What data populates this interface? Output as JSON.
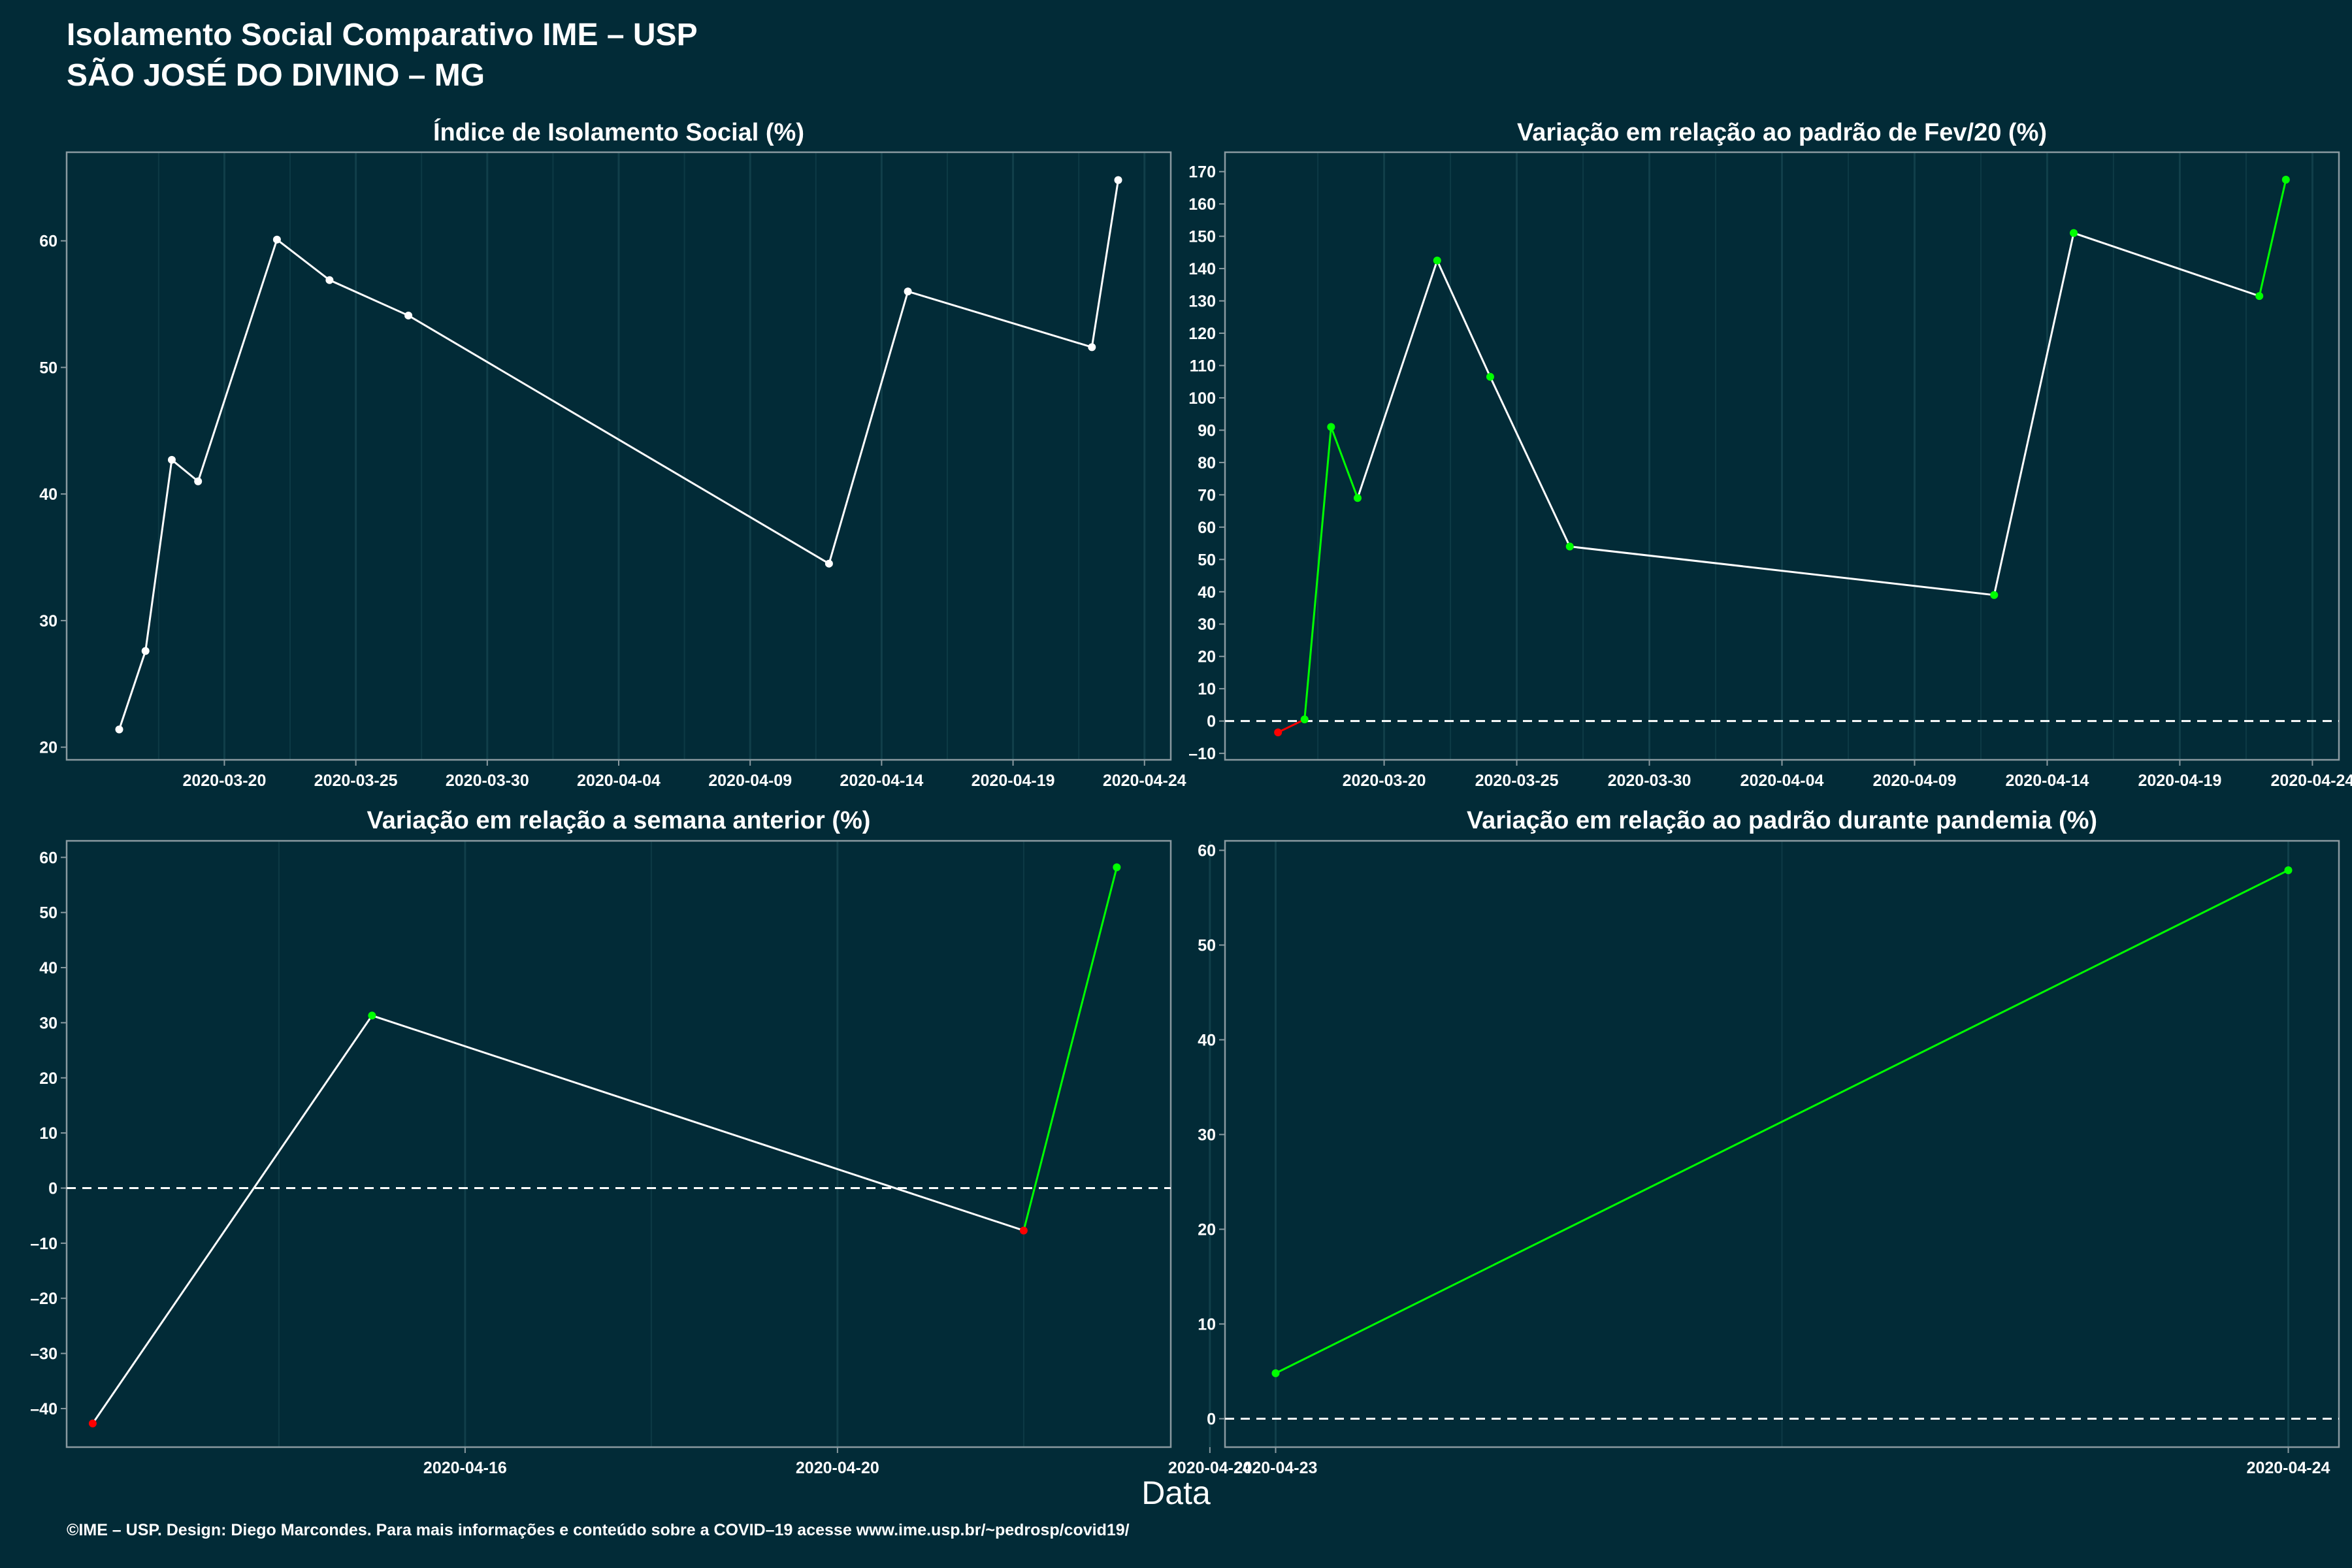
{
  "title": "Isolamento Social Comparativo IME – USP",
  "subtitle": "SÃO JOSÉ DO DIVINO – MG",
  "xlabel": "Data",
  "footer": "©IME – USP. Design: Diego Marcondes. Para mais informações e conteúdo sobre a COVID–19 acesse www.ime.usp.br/~pedrosp/covid19/",
  "colors": {
    "background": "#022b37",
    "neutral": "#ffffff",
    "positive": "#00ff00",
    "negative": "#ff0000",
    "axis": "#8a9aa0"
  },
  "chart_data": [
    {
      "type": "line",
      "title": "Índice de Isolamento Social (%)",
      "x": [
        "2020-03-16",
        "2020-03-17",
        "2020-03-18",
        "2020-03-19",
        "2020-03-22",
        "2020-03-24",
        "2020-03-27",
        "2020-04-12",
        "2020-04-15",
        "2020-04-22",
        "2020-04-23"
      ],
      "y": [
        21.4,
        27.6,
        42.7,
        41.0,
        60.1,
        56.9,
        54.1,
        34.5,
        56.0,
        51.6,
        64.8
      ],
      "point_colors": [
        "white",
        "white",
        "white",
        "white",
        "white",
        "white",
        "white",
        "white",
        "white",
        "white",
        "white"
      ],
      "xlim": [
        "2020-03-14",
        "2020-04-25"
      ],
      "ylim": [
        19,
        67
      ],
      "xticks": [
        "2020-03-20",
        "2020-03-25",
        "2020-03-30",
        "2020-04-04",
        "2020-04-09",
        "2020-04-14",
        "2020-04-19",
        "2020-04-24"
      ],
      "yticks": [
        20,
        30,
        40,
        50,
        60
      ],
      "zero_line": false
    },
    {
      "type": "line",
      "title": "Variação em relação ao padrão de Fev/20 (%)",
      "x": [
        "2020-03-16",
        "2020-03-17",
        "2020-03-18",
        "2020-03-19",
        "2020-03-22",
        "2020-03-24",
        "2020-03-27",
        "2020-04-12",
        "2020-04-15",
        "2020-04-22",
        "2020-04-23"
      ],
      "y": [
        -3.5,
        0.5,
        91.0,
        69.0,
        142.5,
        106.5,
        54.0,
        39.0,
        151.0,
        131.5,
        167.5
      ],
      "point_colors": [
        "red",
        "green",
        "green",
        "green",
        "green",
        "green",
        "green",
        "green",
        "green",
        "green",
        "green"
      ],
      "xlim": [
        "2020-03-14",
        "2020-04-25"
      ],
      "ylim": [
        -12,
        176
      ],
      "xticks": [
        "2020-03-20",
        "2020-03-25",
        "2020-03-30",
        "2020-04-04",
        "2020-04-09",
        "2020-04-14",
        "2020-04-19",
        "2020-04-24"
      ],
      "yticks": [
        -10,
        0,
        10,
        20,
        30,
        40,
        50,
        60,
        70,
        80,
        90,
        100,
        110,
        120,
        130,
        140,
        150,
        160,
        170
      ],
      "zero_line": true
    },
    {
      "type": "line",
      "title": "Variação em relação a semana anterior (%)",
      "x": [
        "2020-04-12",
        "2020-04-15",
        "2020-04-22",
        "2020-04-23"
      ],
      "y": [
        -42.7,
        31.3,
        -7.7,
        58.2
      ],
      "point_colors": [
        "red",
        "green",
        "red",
        "green"
      ],
      "xlim": [
        "2020-04-11.72",
        "2020-04-23.58"
      ],
      "ylim": [
        -47,
        63
      ],
      "xticks": [
        "2020-04-16",
        "2020-04-20",
        "2020-04-24"
      ],
      "yticks": [
        -40,
        -30,
        -20,
        -10,
        0,
        10,
        20,
        30,
        40,
        50,
        60
      ],
      "zero_line": true
    },
    {
      "type": "line",
      "title": "Variação em relação ao padrão durante pandemia (%)",
      "x": [
        "2020-04-23",
        "2020-04-24"
      ],
      "y": [
        4.8,
        57.9
      ],
      "point_colors": [
        "green",
        "green"
      ],
      "xlim": [
        "2020-04-22.95",
        "2020-04-24.05"
      ],
      "ylim": [
        -3,
        61
      ],
      "xticks": [
        "2020-04-23",
        "2020-04-24"
      ],
      "yticks": [
        0,
        10,
        20,
        30,
        40,
        50,
        60
      ],
      "zero_line": true
    }
  ]
}
